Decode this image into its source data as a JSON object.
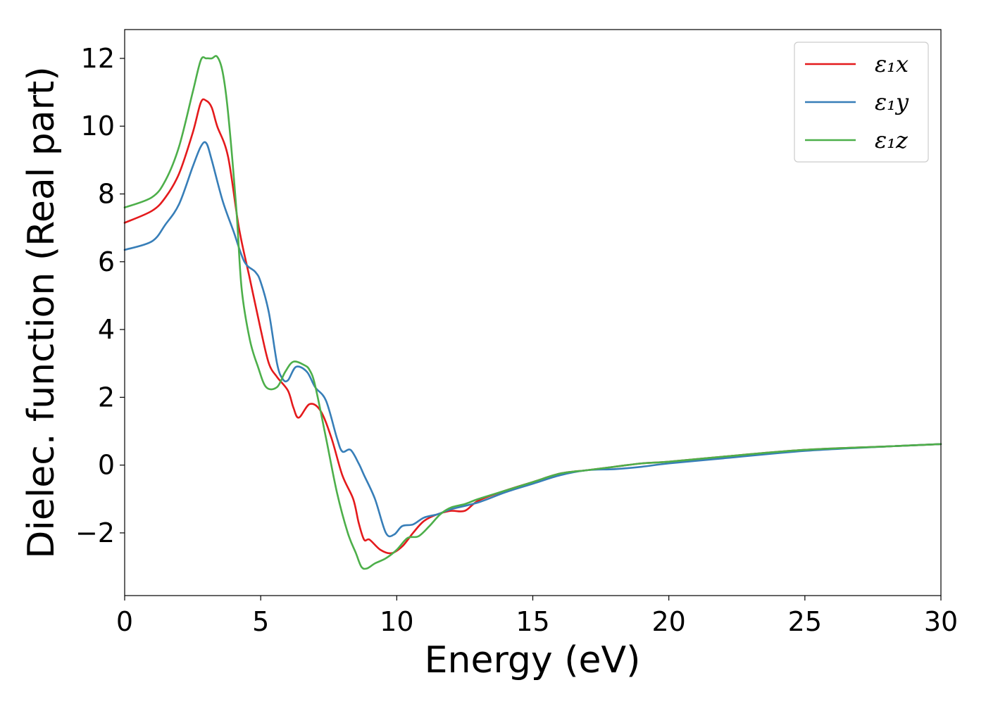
{
  "chart_data": {
    "type": "line",
    "title": "",
    "xlabel": "Energy (eV)",
    "ylabel": "Dielec. function (Real part)",
    "xlim": [
      0,
      30
    ],
    "ylim": [
      -3.85,
      12.85
    ],
    "xticks": [
      0,
      5,
      10,
      15,
      20,
      25,
      30
    ],
    "xtick_labels": [
      "0",
      "5",
      "10",
      "15",
      "20",
      "25",
      "30"
    ],
    "yticks": [
      -2,
      0,
      2,
      4,
      6,
      8,
      10,
      12
    ],
    "ytick_labels": [
      "−2",
      "0",
      "2",
      "4",
      "6",
      "8",
      "10",
      "12"
    ],
    "grid": false,
    "legend_position": "top-right",
    "series": [
      {
        "name": "ε₁x",
        "color": "#e41a1c",
        "x": [
          0,
          1.0,
          1.5,
          2.0,
          2.5,
          2.8,
          3.0,
          3.2,
          3.4,
          3.8,
          4.2,
          4.6,
          5.0,
          5.3,
          5.6,
          6.0,
          6.2,
          6.4,
          6.8,
          7.2,
          7.6,
          8.0,
          8.4,
          8.6,
          8.8,
          9.0,
          9.4,
          9.8,
          10.2,
          10.6,
          11.0,
          11.5,
          12.0,
          12.5,
          13.0,
          14.0,
          15.0,
          16.0,
          17.0,
          18.0,
          19.0,
          20.0,
          22.0,
          25.0,
          28.0,
          30.0
        ],
        "values": [
          7.15,
          7.5,
          7.9,
          8.6,
          9.8,
          10.7,
          10.75,
          10.55,
          10.0,
          9.1,
          7.0,
          5.5,
          4.0,
          3.0,
          2.6,
          2.2,
          1.7,
          1.4,
          1.8,
          1.6,
          0.8,
          -0.3,
          -1.0,
          -1.7,
          -2.2,
          -2.2,
          -2.5,
          -2.6,
          -2.4,
          -2.0,
          -1.65,
          -1.45,
          -1.35,
          -1.35,
          -1.05,
          -0.75,
          -0.5,
          -0.25,
          -0.15,
          -0.05,
          0.05,
          0.1,
          0.25,
          0.45,
          0.55,
          0.62
        ]
      },
      {
        "name": "ε₁y",
        "color": "#377eb8",
        "x": [
          0,
          1.0,
          1.5,
          2.0,
          2.5,
          2.8,
          3.0,
          3.2,
          3.6,
          4.0,
          4.4,
          4.8,
          5.0,
          5.3,
          5.6,
          5.8,
          6.0,
          6.3,
          6.7,
          7.0,
          7.4,
          7.8,
          8.0,
          8.3,
          8.6,
          8.8,
          9.2,
          9.6,
          9.9,
          10.2,
          10.6,
          11.0,
          11.5,
          12.0,
          13.0,
          14.0,
          15.0,
          16.0,
          17.0,
          18.0,
          19.0,
          20.0,
          22.0,
          25.0,
          28.0,
          30.0
        ],
        "values": [
          6.35,
          6.6,
          7.1,
          7.7,
          8.8,
          9.4,
          9.5,
          9.0,
          7.8,
          6.9,
          6.0,
          5.7,
          5.4,
          4.5,
          3.0,
          2.55,
          2.5,
          2.9,
          2.75,
          2.3,
          1.9,
          0.8,
          0.4,
          0.45,
          0.05,
          -0.3,
          -1.0,
          -2.0,
          -2.05,
          -1.8,
          -1.75,
          -1.55,
          -1.45,
          -1.3,
          -1.1,
          -0.8,
          -0.55,
          -0.3,
          -0.15,
          -0.12,
          -0.05,
          0.05,
          0.2,
          0.42,
          0.55,
          0.62
        ]
      },
      {
        "name": "ε₁z",
        "color": "#4daf4a",
        "x": [
          0,
          1.0,
          1.5,
          2.0,
          2.5,
          2.8,
          3.0,
          3.2,
          3.4,
          3.6,
          3.8,
          4.1,
          4.3,
          4.6,
          4.9,
          5.2,
          5.6,
          5.9,
          6.2,
          6.6,
          6.8,
          7.0,
          7.4,
          7.8,
          8.2,
          8.5,
          8.7,
          8.9,
          9.2,
          9.6,
          10.0,
          10.4,
          10.8,
          11.2,
          11.6,
          12.0,
          12.5,
          13.0,
          14.0,
          15.0,
          16.0,
          17.0,
          18.0,
          19.0,
          20.0,
          22.0,
          25.0,
          28.0,
          30.0
        ],
        "values": [
          7.6,
          7.9,
          8.4,
          9.4,
          11.0,
          11.95,
          12.0,
          12.0,
          12.05,
          11.6,
          10.4,
          7.6,
          5.2,
          3.7,
          2.9,
          2.3,
          2.3,
          2.75,
          3.05,
          2.95,
          2.8,
          2.35,
          0.8,
          -0.8,
          -2.0,
          -2.6,
          -3.0,
          -3.05,
          -2.9,
          -2.75,
          -2.5,
          -2.15,
          -2.1,
          -1.8,
          -1.45,
          -1.25,
          -1.15,
          -1.0,
          -0.75,
          -0.5,
          -0.25,
          -0.15,
          -0.05,
          0.05,
          0.1,
          0.25,
          0.45,
          0.55,
          0.62
        ]
      }
    ]
  }
}
